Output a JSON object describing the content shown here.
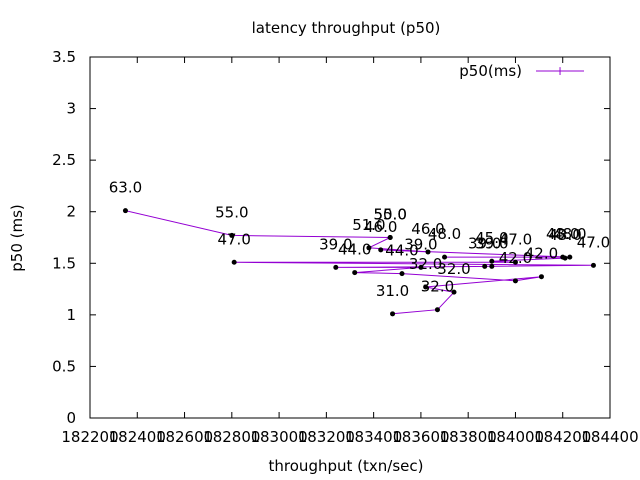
{
  "chart_data": {
    "type": "line",
    "title": "latency throughput (p50)",
    "xlabel": "throughput (txn/sec)",
    "ylabel": "p50 (ms)",
    "xlim": [
      182200,
      184400
    ],
    "ylim": [
      0,
      3.5
    ],
    "xticks": [
      182200,
      182400,
      182600,
      182800,
      183000,
      183200,
      183400,
      183600,
      183800,
      184000,
      184200,
      184400
    ],
    "xtick_labels": [
      "182200",
      "182400",
      "182600",
      "182800",
      "183000",
      "183200",
      "183400",
      "183600",
      "183800",
      "184000",
      "184200",
      "184400"
    ],
    "yticks": [
      0,
      0.5,
      1,
      1.5,
      2,
      2.5,
      3,
      3.5
    ],
    "ytick_labels": [
      "0",
      "0.5",
      "1",
      "1.5",
      "2",
      "2.5",
      "3",
      "3.5"
    ],
    "grid": false,
    "legend": "top-right",
    "series": [
      {
        "name": "p50(ms)",
        "color": "#9400d3",
        "marker_color": "#000000",
        "points": [
          {
            "x": 183480,
            "y": 1.01,
            "label": "31.0"
          },
          {
            "x": 183670,
            "y": 1.05,
            "label": "32.0"
          },
          {
            "x": 183740,
            "y": 1.22,
            "label": "32.0"
          },
          {
            "x": 183620,
            "y": 1.27,
            "label": "32.0"
          },
          {
            "x": 184110,
            "y": 1.37,
            "label": "42.0"
          },
          {
            "x": 184000,
            "y": 1.33,
            "label": "42.0"
          },
          {
            "x": 183520,
            "y": 1.4,
            "label": "44.0"
          },
          {
            "x": 183320,
            "y": 1.41,
            "label": "44.0"
          },
          {
            "x": 183600,
            "y": 1.46,
            "label": "39.0"
          },
          {
            "x": 183240,
            "y": 1.46,
            "label": "39.0"
          },
          {
            "x": 183900,
            "y": 1.47,
            "label": "39.0"
          },
          {
            "x": 183870,
            "y": 1.47,
            "label": "39.0"
          },
          {
            "x": 184330,
            "y": 1.48,
            "label": "47.0"
          },
          {
            "x": 182810,
            "y": 1.51,
            "label": "47.0"
          },
          {
            "x": 184000,
            "y": 1.51,
            "label": "47.0"
          },
          {
            "x": 183900,
            "y": 1.52,
            "label": "45.0"
          },
          {
            "x": 184210,
            "y": 1.55,
            "label": "43.0"
          },
          {
            "x": 184200,
            "y": 1.56,
            "label": "48.0"
          },
          {
            "x": 183700,
            "y": 1.56,
            "label": "48.0"
          },
          {
            "x": 184230,
            "y": 1.56,
            "label": "48.0"
          },
          {
            "x": 183430,
            "y": 1.63,
            "label": "46.0"
          },
          {
            "x": 183630,
            "y": 1.61,
            "label": "46.0"
          },
          {
            "x": 183380,
            "y": 1.65,
            "label": "51.0"
          },
          {
            "x": 183470,
            "y": 1.75,
            "label": "50.0"
          },
          {
            "x": 183470,
            "y": 1.75,
            "label": "55.0"
          },
          {
            "x": 182800,
            "y": 1.77,
            "label": "55.0"
          },
          {
            "x": 182350,
            "y": 2.01,
            "label": "63.0"
          }
        ]
      }
    ]
  }
}
